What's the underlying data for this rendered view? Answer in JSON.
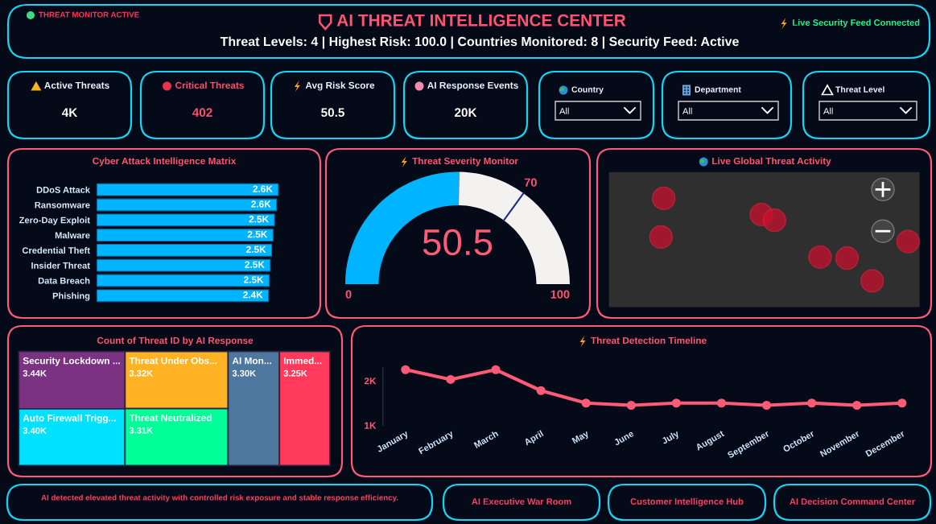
{
  "chart_data": [
    {
      "type": "other",
      "title": "AI THREAT INTELLIGENCE CENTER",
      "subtitle": "Threat Levels: 4 | Highest Risk: 100.0 | Countries Monitored: 8 | Security Feed: Active",
      "annotations": [
        "THREAT MONITOR ACTIVE",
        "Live Security Feed Connected"
      ]
    },
    {
      "type": "other",
      "title": "Active Threats",
      "annotations": [
        "4K"
      ]
    },
    {
      "type": "other",
      "title": "Critical Threats",
      "annotations": [
        "402"
      ],
      "color": "#ff4d6d"
    },
    {
      "type": "other",
      "title": "Avg Risk Score",
      "annotations": [
        "50.5"
      ]
    },
    {
      "type": "other",
      "title": "AI Response Events",
      "annotations": [
        "20K"
      ]
    },
    {
      "type": "other",
      "title": "Country",
      "annotations": [
        "All"
      ]
    },
    {
      "type": "other",
      "title": "Department",
      "annotations": [
        "All"
      ]
    },
    {
      "type": "other",
      "title": "Threat Level",
      "annotations": [
        "All"
      ]
    },
    {
      "type": "bar",
      "orientation": "horizontal",
      "title": "Cyber Attack Intelligence Matrix",
      "categories": [
        "DDoS Attack",
        "Ransomware",
        "Zero-Day Exploit",
        "Malware",
        "Credential Theft",
        "Insider Threat",
        "Data Breach",
        "Phishing"
      ],
      "values": [
        2585,
        2560,
        2530,
        2510,
        2490,
        2470,
        2455,
        2445
      ],
      "value_labels": [
        "2.6K",
        "2.6K",
        "2.5K",
        "2.5K",
        "2.5K",
        "2.5K",
        "2.5K",
        "2.4K"
      ],
      "color": "#00b4ff",
      "tick_labels": "y"
    },
    {
      "type": "donut",
      "title": "Threat Severity Monitor",
      "categories": [
        null,
        null
      ],
      "values": [
        50.5,
        49.5
      ],
      "colors": [
        "#00b4ff",
        "#f3f2f0"
      ],
      "value_labels": [
        "50.5",
        null
      ],
      "annotations": [
        "0",
        "100",
        "70"
      ]
    },
    {
      "type": "other",
      "title": "Live Global Threat Activity"
    },
    {
      "type": "other",
      "title": "Count of Threat ID by AI Response",
      "categories": [
        "Security Lockdown ...",
        "Auto Firewall Trigg...",
        "Threat Under Obs...",
        "Threat Neutralized",
        "AI Mon...",
        "Immed..."
      ],
      "values": [
        3440,
        3400,
        3320,
        3310,
        3300,
        3250
      ],
      "value_labels": [
        "3.44K",
        "3.40K",
        "3.32K",
        "3.31K",
        "3.30K",
        "3.25K"
      ],
      "colors": [
        "#7b3282",
        "#00e1ff",
        "#ffb224",
        "#00ff99",
        "#4e779f",
        "#ff3a5a"
      ]
    },
    {
      "type": "line",
      "title": "Threat Detection Timeline",
      "categories": [
        "January",
        "February",
        "March",
        "April",
        "May",
        "June",
        "July",
        "August",
        "September",
        "October",
        "November",
        "December"
      ],
      "values": [
        2250,
        2030,
        2250,
        1780,
        1500,
        1450,
        1500,
        1500,
        1450,
        1500,
        1450,
        1500
      ],
      "color": "#ff5a78",
      "ylim": [
        1000,
        2300
      ],
      "yticks": [
        {
          "value": 1000,
          "label": "1K"
        },
        {
          "value": 2000,
          "label": "2K"
        }
      ],
      "marker": "circle",
      "line_style": "solid"
    },
    {
      "type": "other",
      "annotations": [
        "AI detected elevated threat activity with controlled risk exposure and stable response efficiency.",
        "AI Executive War Room",
        "Customer Intelligence Hub",
        "AI Decision Command Center"
      ]
    }
  ]
}
